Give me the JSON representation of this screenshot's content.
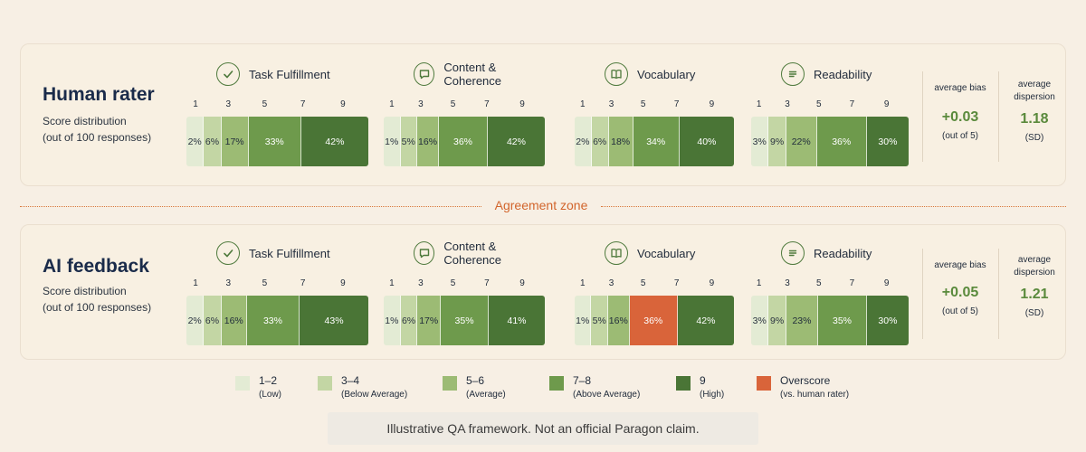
{
  "ticks": [
    "1",
    "3",
    "5",
    "7",
    "9"
  ],
  "criteria": [
    "Task Fulfillment",
    "Content & Coherence",
    "Vocabulary",
    "Readability"
  ],
  "colors": {
    "low": "#e3ebd4",
    "below_average": "#c3d6a4",
    "average": "#9cbb74",
    "above_average": "#6e9a4c",
    "high": "#4a7536",
    "overscore": "#d9643a"
  },
  "agreement_zone": "Agreement zone",
  "footnote": "Illustrative QA framework. Not an official Paragon claim.",
  "legend": [
    {
      "label": "1–2",
      "sub": "(Low)",
      "color": "#e3ebd4"
    },
    {
      "label": "3–4",
      "sub": "(Below Average)",
      "color": "#c3d6a4"
    },
    {
      "label": "5–6",
      "sub": "(Average)",
      "color": "#9cbb74"
    },
    {
      "label": "7–8",
      "sub": "(Above Average)",
      "color": "#6e9a4c"
    },
    {
      "label": "9",
      "sub": "(High)",
      "color": "#4a7536"
    },
    {
      "label": "Overscore",
      "sub": "(vs. human rater)",
      "color": "#d9643a"
    }
  ],
  "chart_data": [
    {
      "type": "bar",
      "title": "Human rater",
      "subtitle": [
        "Score distribution",
        "(out of 100 responses)"
      ],
      "categories": [
        "1–2",
        "3–4",
        "5–6",
        "7–8",
        "9"
      ],
      "series": [
        {
          "name": "Task Fulfillment",
          "values": [
            2,
            6,
            17,
            33,
            42
          ],
          "labels": [
            "2%",
            "6%",
            "17%",
            "33%",
            "42%"
          ]
        },
        {
          "name": "Content & Coherence",
          "values": [
            1,
            5,
            16,
            36,
            42
          ],
          "labels": [
            "1%",
            "5%",
            "16%",
            "36%",
            "42%"
          ]
        },
        {
          "name": "Vocabulary",
          "values": [
            2,
            6,
            18,
            34,
            40
          ],
          "labels": [
            "2%",
            "6%",
            "18%",
            "34%",
            "40%"
          ]
        },
        {
          "name": "Readability",
          "values": [
            3,
            9,
            22,
            36,
            30
          ],
          "labels": [
            "3%",
            "9%",
            "22%",
            "36%",
            "30%"
          ]
        }
      ],
      "stats": [
        {
          "label": "average bias",
          "value": "+0.03",
          "unit": "(out of 5)"
        },
        {
          "label": "average dispersion",
          "value": "1.18",
          "unit": "(SD)"
        }
      ]
    },
    {
      "type": "bar",
      "title": "AI feedback",
      "subtitle": [
        "Score distribution",
        "(out of 100 responses)"
      ],
      "categories": [
        "1–2",
        "3–4",
        "5–6",
        "7–8",
        "9"
      ],
      "series": [
        {
          "name": "Task Fulfillment",
          "values": [
            2,
            6,
            16,
            33,
            43
          ],
          "labels": [
            "2%",
            "6%",
            "16%",
            "33%",
            "43%"
          ]
        },
        {
          "name": "Content & Coherence",
          "values": [
            1,
            6,
            17,
            35,
            41
          ],
          "labels": [
            "1%",
            "6%",
            "17%",
            "35%",
            "41%"
          ]
        },
        {
          "name": "Vocabulary",
          "values": [
            1,
            5,
            16,
            36,
            42
          ],
          "labels": [
            "1%",
            "5%",
            "16%",
            "36%",
            "42%"
          ],
          "overscore_index": 3
        },
        {
          "name": "Readability",
          "values": [
            3,
            9,
            23,
            35,
            30
          ],
          "labels": [
            "3%",
            "9%",
            "23%",
            "35%",
            "30%"
          ]
        }
      ],
      "stats": [
        {
          "label": "average bias",
          "value": "+0.05",
          "unit": "(out of 5)"
        },
        {
          "label": "average dispersion",
          "value": "1.21",
          "unit": "(SD)"
        }
      ]
    }
  ]
}
